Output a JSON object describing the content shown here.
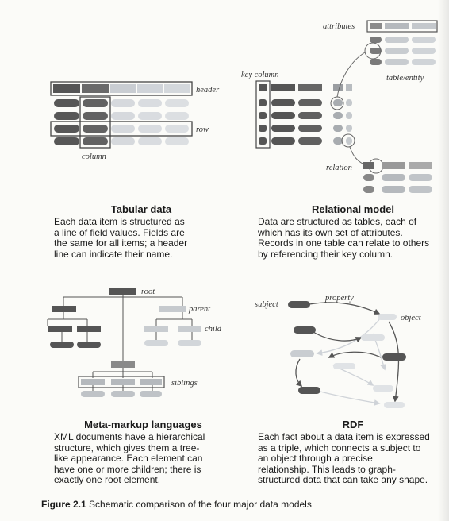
{
  "tabular": {
    "labels": {
      "header": "header",
      "row": "row",
      "column": "column"
    },
    "title": "Tabular data",
    "lines": [
      "Each data item is structured as",
      "a line of field values. Fields are",
      "the same for all items; a header",
      "line can indicate their name."
    ]
  },
  "relational": {
    "labels": {
      "attributes": "attributes",
      "key_column": "key column",
      "table_entity": "table/entity",
      "relation": "relation"
    },
    "title": "Relational model",
    "lines": [
      "Data are structured as tables, each of",
      "which has its own set of attributes.",
      "Records in one table can relate to others",
      "by referencing their key column."
    ]
  },
  "meta": {
    "labels": {
      "root": "root",
      "parent": "parent",
      "child": "child",
      "siblings": "siblings"
    },
    "title": "Meta-markup languages",
    "lines": [
      "XML documents have a hierarchical",
      "structure, which gives them a tree-",
      "like appearance. Each element can",
      "have one or more children; there is",
      "exactly one root element."
    ]
  },
  "rdf": {
    "labels": {
      "subject": "subject",
      "property": "property",
      "object": "object"
    },
    "title": "RDF",
    "lines": [
      "Each fact about a data item is expressed",
      "as a triple, which connects a subject to",
      "an object through a precise",
      "relationship. This leads to graph-",
      "structured data that can take any shape."
    ]
  },
  "figure": {
    "number": "Figure 2.1",
    "text": "Schematic comparison of the four major data models"
  }
}
